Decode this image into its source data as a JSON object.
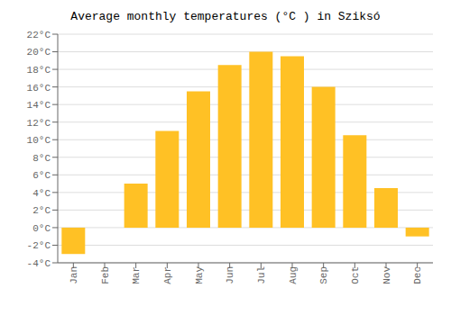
{
  "chart_data": {
    "type": "bar",
    "title": "Average monthly temperatures (°C ) in Sziksó",
    "categories": [
      "Jan",
      "Feb",
      "Mar",
      "Apr",
      "May",
      "Jun",
      "Jul",
      "Aug",
      "Sep",
      "Oct",
      "Nov",
      "Dec"
    ],
    "values": [
      -3.0,
      0.0,
      5.0,
      11.0,
      15.5,
      18.5,
      20.0,
      19.5,
      16.0,
      10.5,
      4.5,
      -1.0
    ],
    "color": "#FFC125",
    "ylim": [
      -4,
      22
    ],
    "yticks": [
      {
        "value": -4,
        "label": "-4°C"
      },
      {
        "value": -2,
        "label": "-2°C"
      },
      {
        "value": 0,
        "label": "0°C"
      },
      {
        "value": 2,
        "label": "2°C"
      },
      {
        "value": 4,
        "label": "4°C"
      },
      {
        "value": 6,
        "label": "6°C"
      },
      {
        "value": 8,
        "label": "8°C"
      },
      {
        "value": 10,
        "label": "10°C"
      },
      {
        "value": 12,
        "label": "12°C"
      },
      {
        "value": 14,
        "label": "14°C"
      },
      {
        "value": 16,
        "label": "16°C"
      },
      {
        "value": 18,
        "label": "18°C"
      },
      {
        "value": 20,
        "label": "20°C"
      },
      {
        "value": 22,
        "label": "22°C"
      }
    ],
    "grid": true
  }
}
